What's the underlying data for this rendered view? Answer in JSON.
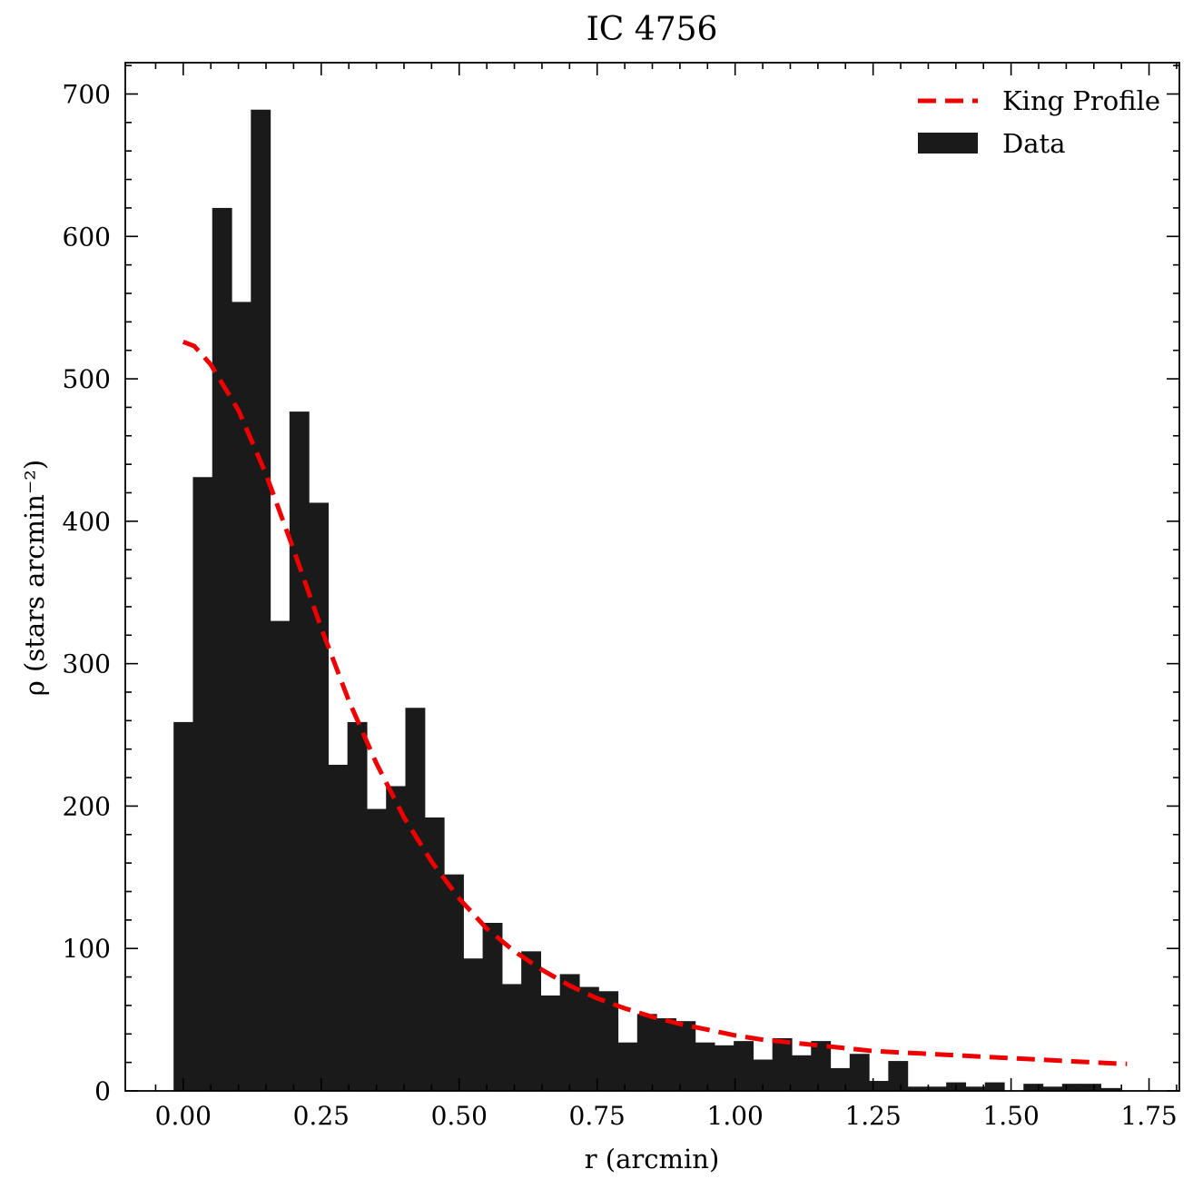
{
  "chart_data": {
    "type": "bar",
    "title": "IC 4756",
    "xlabel": "r (arcmin)",
    "ylabel": "ρ (stars arcmin⁻²)",
    "xlim": [
      -0.105,
      1.805
    ],
    "ylim": [
      0,
      722
    ],
    "xticks": [
      0.0,
      0.25,
      0.5,
      0.75,
      1.0,
      1.25,
      1.5,
      1.75
    ],
    "xtick_labels": [
      "0.00",
      "0.25",
      "0.50",
      "0.75",
      "1.00",
      "1.25",
      "1.50",
      "1.75"
    ],
    "yticks": [
      0,
      100,
      200,
      300,
      400,
      500,
      600,
      700
    ],
    "ytick_labels": [
      "0",
      "100",
      "200",
      "300",
      "400",
      "500",
      "600",
      "700"
    ],
    "legend": {
      "position": "top-right",
      "entries": [
        "King Profile",
        "Data"
      ]
    },
    "grid": false,
    "series": [
      {
        "name": "Data",
        "kind": "histogram",
        "color": "#1a1a1a",
        "bin_width": 0.035,
        "bin_start": -0.0175,
        "values": [
          259,
          431,
          620,
          554,
          689,
          330,
          477,
          413,
          229,
          259,
          198,
          214,
          269,
          192,
          152,
          93,
          118,
          75,
          98,
          67,
          82,
          73,
          70,
          34,
          54,
          51,
          49,
          34,
          32,
          35,
          22,
          37,
          25,
          35,
          16,
          26,
          7,
          21,
          3,
          3,
          6,
          3,
          6,
          0,
          5,
          3,
          5,
          5,
          2
        ]
      },
      {
        "name": "King Profile",
        "kind": "line",
        "style": "dashed",
        "color": "#ee0000",
        "x": [
          0.0,
          0.02,
          0.05,
          0.1,
          0.15,
          0.2,
          0.25,
          0.3,
          0.35,
          0.4,
          0.45,
          0.5,
          0.55,
          0.6,
          0.65,
          0.7,
          0.75,
          0.8,
          0.85,
          0.9,
          0.95,
          1.0,
          1.05,
          1.1,
          1.15,
          1.2,
          1.25,
          1.3,
          1.35,
          1.4,
          1.45,
          1.5,
          1.55,
          1.6,
          1.65,
          1.7,
          1.71
        ],
        "y": [
          526,
          523,
          510,
          478,
          433,
          380,
          325,
          274,
          230,
          192,
          161,
          135,
          114,
          98,
          85,
          74,
          65,
          58,
          52,
          47,
          43,
          39,
          36,
          34,
          32,
          30,
          28,
          27,
          26,
          25,
          24,
          23,
          22,
          21,
          20,
          19,
          19
        ]
      }
    ]
  }
}
